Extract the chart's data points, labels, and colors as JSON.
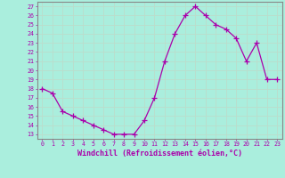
{
  "x": [
    0,
    1,
    2,
    3,
    4,
    5,
    6,
    7,
    8,
    9,
    10,
    11,
    12,
    13,
    14,
    15,
    16,
    17,
    18,
    19,
    20,
    21,
    22,
    23
  ],
  "y": [
    18,
    17.5,
    15.5,
    15,
    14.5,
    14,
    13.5,
    13,
    13,
    13,
    14.5,
    17,
    21,
    24,
    26,
    27,
    26,
    25,
    24.5,
    23.5,
    21,
    23,
    19,
    19
  ],
  "line_color": "#aa00aa",
  "marker": "+",
  "marker_color": "#aa00aa",
  "bg_color": "#aaeedd",
  "grid_color": "#bbddcc",
  "xlabel": "Windchill (Refroidissement éolien,°C)",
  "xlabel_color": "#aa00aa",
  "yticks": [
    13,
    14,
    15,
    16,
    17,
    18,
    19,
    20,
    21,
    22,
    23,
    24,
    25,
    26,
    27
  ],
  "ylim": [
    12.5,
    27.5
  ],
  "xlim": [
    -0.5,
    23.5
  ],
  "xticks": [
    0,
    1,
    2,
    3,
    4,
    5,
    6,
    7,
    8,
    9,
    10,
    11,
    12,
    13,
    14,
    15,
    16,
    17,
    18,
    19,
    20,
    21,
    22,
    23
  ],
  "tick_color": "#aa00aa",
  "tick_fontsize": 4.8,
  "xlabel_fontsize": 6.0,
  "border_color": "#aa00aa",
  "spine_color": "#888888"
}
